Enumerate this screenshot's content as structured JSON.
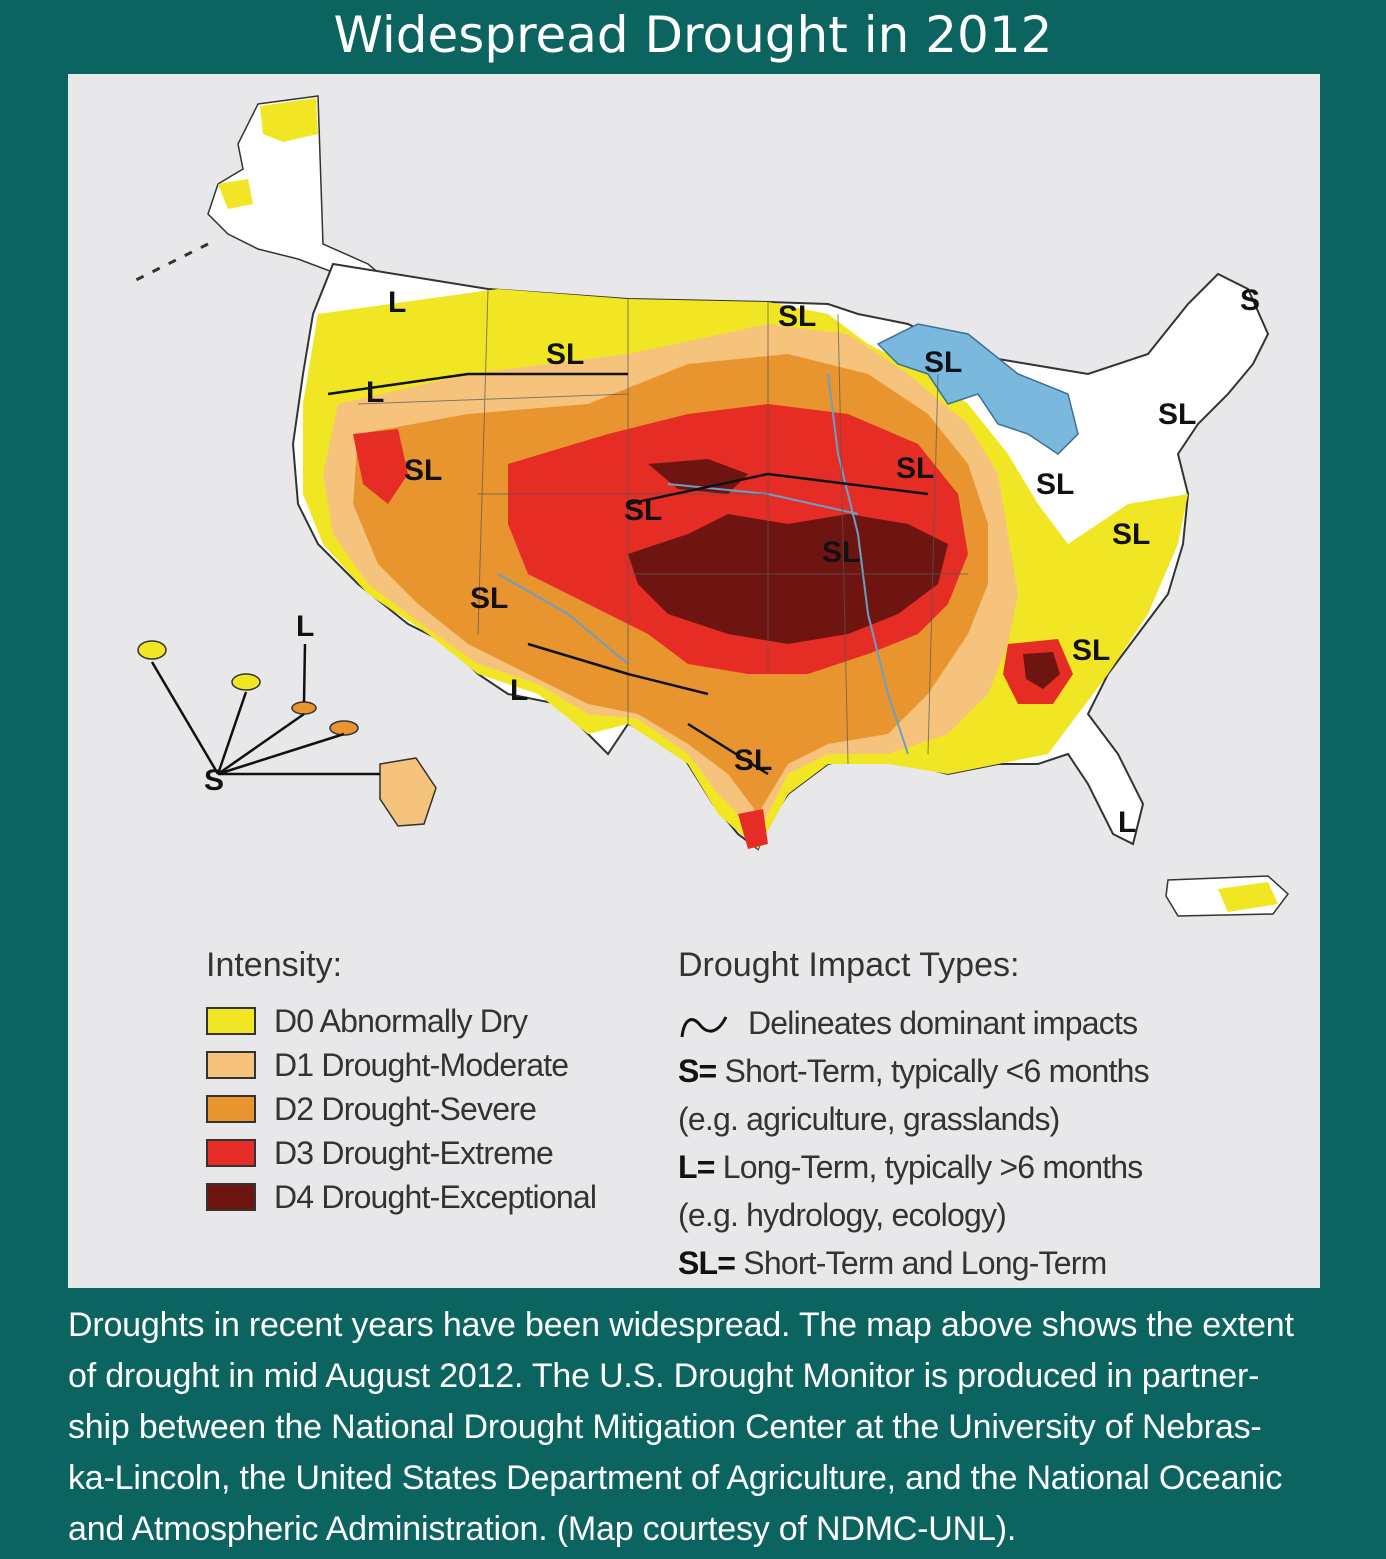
{
  "title": "Widespread Drought in 2012",
  "colors": {
    "background": "#0b6460",
    "panel": "#e8e8ea",
    "D0": "#f1e623",
    "D1": "#f6c37d",
    "D2": "#e8952f",
    "D3": "#e52d25",
    "D4": "#6e1512",
    "water": "#7ab8de"
  },
  "map_labels": {
    "alaska_note": "S",
    "hawaii": "S",
    "pacific_l": "L",
    "wa": "L",
    "or": "L",
    "mt": "SL",
    "mn": "SL",
    "mi": "SL",
    "me": "S",
    "ny": "SL",
    "nv": "SL",
    "ia": "SL",
    "oh": "SL",
    "wv": "SL",
    "co": "SL",
    "mo": "SL",
    "az": "SL",
    "nm": "L",
    "sc": "SL",
    "tx": "SL",
    "fl": "L"
  },
  "legend": {
    "intensity_title": "Intensity:",
    "items": [
      {
        "label": "D0 Abnormally Dry",
        "color": "#f1e623"
      },
      {
        "label": "D1 Drought-Moderate",
        "color": "#f6c37d"
      },
      {
        "label": "D2 Drought-Severe",
        "color": "#e8952f"
      },
      {
        "label": "D3 Drought-Extreme",
        "color": "#e52d25"
      },
      {
        "label": "D4 Drought-Exceptional",
        "color": "#6e1512"
      }
    ]
  },
  "impact": {
    "title": "Drought Impact Types:",
    "tilde_text": "Delineates dominant impacts",
    "s_key": "S=",
    "s_text": "Short-Term, typically <6 months",
    "s_eg": "(e.g. agriculture, grasslands)",
    "l_key": "L=",
    "l_text": "Long-Term, typically >6 months",
    "l_eg": "(e.g. hydrology, ecology)",
    "sl_key": "SL=",
    "sl_text": "Short-Term and Long-Term"
  },
  "caption": {
    "line1": "Droughts in recent years have been widespread. The map above shows the extent",
    "line2": "of drought in mid August 2012. The U.S. Drought Monitor is produced in partner-",
    "line3": "ship between the National Drought Mitigation Center at the University of Nebras-",
    "line4": "ka-Lincoln, the United States Department of Agriculture, and the National Oceanic",
    "line5": "and Atmospheric Administration. (Map courtesy of NDMC-UNL)."
  }
}
